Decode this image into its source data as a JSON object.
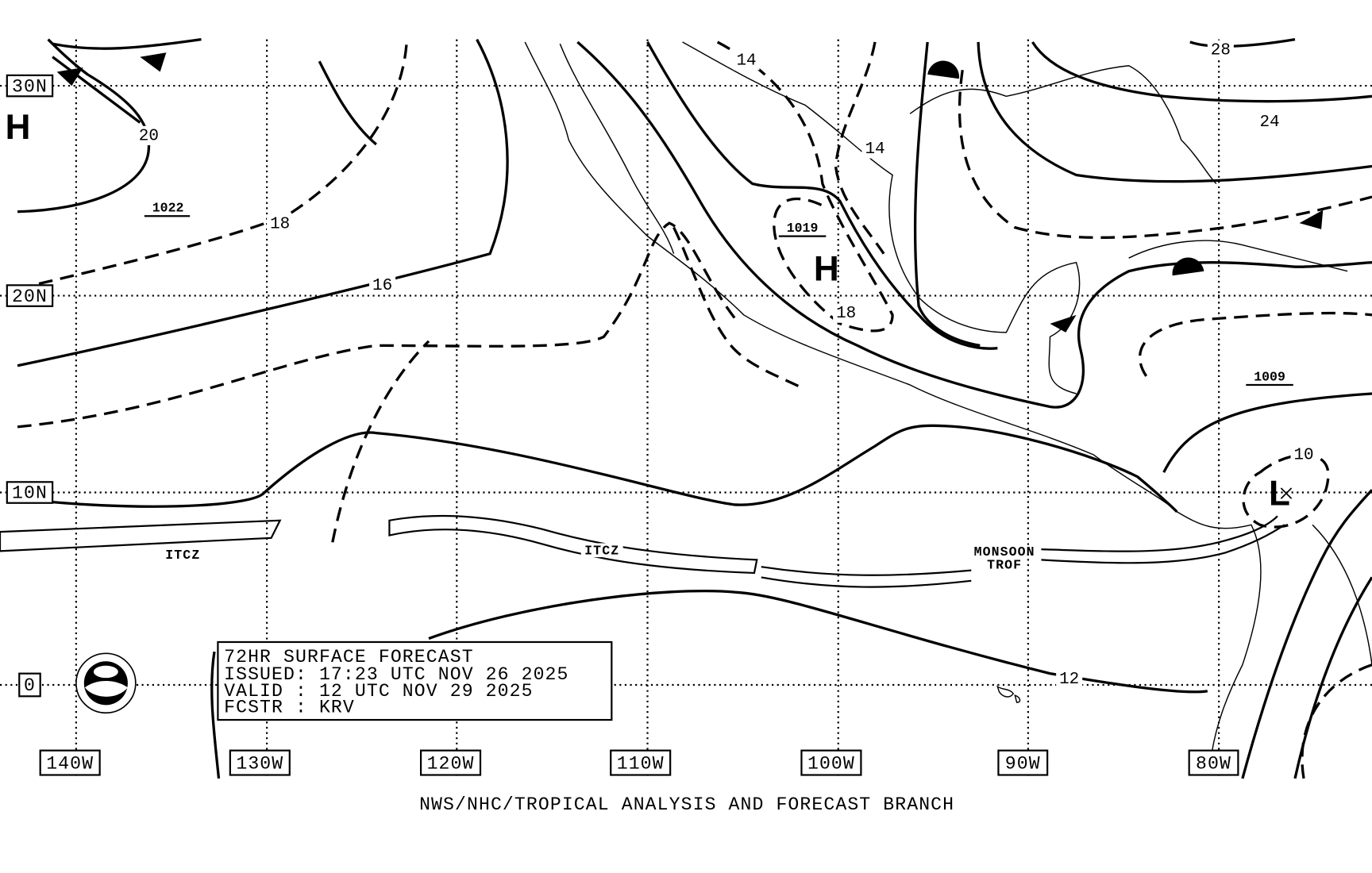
{
  "map": {
    "lat_labels": [
      "30N",
      "20N",
      "10N",
      "0"
    ],
    "lon_labels": [
      "140W",
      "130W",
      "120W",
      "110W",
      "100W",
      "90W",
      "80W"
    ],
    "centers": [
      "H",
      "H",
      "L"
    ],
    "pressure_values": [
      "1022",
      "1019",
      "1009"
    ],
    "isobar_labels": [
      "20",
      "18",
      "16",
      "14",
      "14",
      "18",
      "28",
      "24",
      "10",
      "12"
    ],
    "features": [
      "ITCZ",
      "ITCZ",
      "MONSOON",
      "TROF"
    ],
    "info_box": [
      "72HR SURFACE FORECAST",
      "ISSUED: 17:23 UTC NOV 26 2025",
      "VALID : 12 UTC NOV 29 2025",
      "FCSTR : KRV"
    ],
    "footer": "NWS/NHC/TROPICAL ANALYSIS AND FORECAST BRANCH"
  }
}
